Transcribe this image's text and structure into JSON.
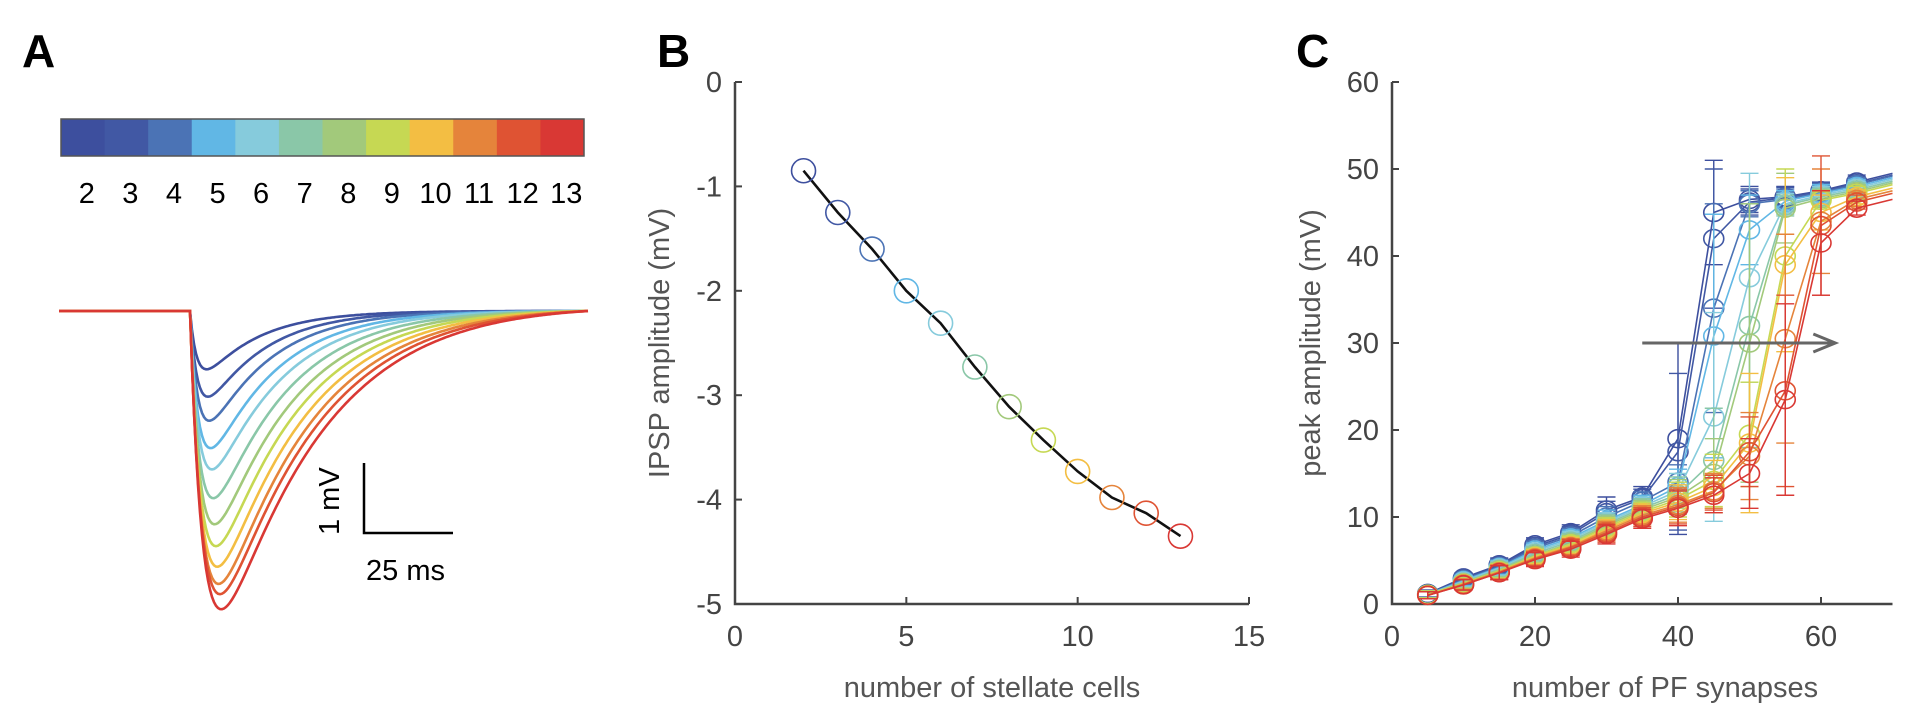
{
  "figure": {
    "panel_labels": [
      "A",
      "B",
      "C"
    ]
  },
  "chart_data": [
    {
      "panel": "A",
      "type": "line",
      "title": "",
      "description": "Simulated IPSP traces for different numbers of stellate cells",
      "colorbar": {
        "labels": [
          "2",
          "3",
          "4",
          "5",
          "6",
          "7",
          "8",
          "9",
          "10",
          "11",
          "12",
          "13"
        ],
        "colors": [
          "#3d4f9e",
          "#4158a4",
          "#4b73b5",
          "#61b7e5",
          "#86cbdc",
          "#8ac7a8",
          "#a2c97b",
          "#c6d853",
          "#f3be43",
          "#e5843b",
          "#df5333",
          "#d93834"
        ]
      },
      "series": [
        {
          "name": "2",
          "peak_mV": -0.85
        },
        {
          "name": "3",
          "peak_mV": -1.25
        },
        {
          "name": "4",
          "peak_mV": -1.6
        },
        {
          "name": "5",
          "peak_mV": -2.0
        },
        {
          "name": "6",
          "peak_mV": -2.31
        },
        {
          "name": "7",
          "peak_mV": -2.73
        },
        {
          "name": "8",
          "peak_mV": -3.11
        },
        {
          "name": "9",
          "peak_mV": -3.43
        },
        {
          "name": "10",
          "peak_mV": -3.73
        },
        {
          "name": "11",
          "peak_mV": -3.98
        },
        {
          "name": "12",
          "peak_mV": -4.13
        },
        {
          "name": "13",
          "peak_mV": -4.35
        }
      ],
      "scalebar": {
        "vertical_label": "1 mV",
        "horizontal_label": "25 ms",
        "vertical_mV": 1,
        "horizontal_ms": 25
      }
    },
    {
      "panel": "B",
      "type": "line",
      "title": "",
      "xlabel": "number of stellate cells",
      "ylabel": "IPSP amplitude (mV)",
      "xlim": [
        0,
        15
      ],
      "ylim": [
        -5,
        0
      ],
      "xticks": [
        0,
        5,
        10,
        15
      ],
      "yticks": [
        0,
        -1,
        -2,
        -3,
        -4,
        -5
      ],
      "x": [
        2,
        3,
        4,
        5,
        6,
        7,
        8,
        9,
        10,
        11,
        12,
        13
      ],
      "values": [
        -0.85,
        -1.25,
        -1.6,
        -2.0,
        -2.31,
        -2.73,
        -3.11,
        -3.43,
        -3.73,
        -3.98,
        -4.13,
        -4.35
      ],
      "marker_colors": [
        "#3d4f9e",
        "#4158a4",
        "#4b73b5",
        "#61b7e5",
        "#86cbdc",
        "#8ac7a8",
        "#a2c97b",
        "#c6d853",
        "#f3be43",
        "#e5843b",
        "#df5333",
        "#d93834"
      ],
      "line_color": "#111111",
      "grid": false
    },
    {
      "panel": "C",
      "type": "line",
      "title": "",
      "xlabel": "number of PF synapses",
      "ylabel": "peak amplitude (mV)",
      "xlim": [
        0,
        70
      ],
      "ylim": [
        0,
        60
      ],
      "xticks": [
        0,
        20,
        40,
        60
      ],
      "yticks": [
        0,
        10,
        20,
        30,
        40,
        50,
        60
      ],
      "x": [
        5,
        10,
        15,
        20,
        25,
        30,
        35,
        40,
        45,
        50,
        55,
        60,
        65
      ],
      "series": [
        {
          "name": "2",
          "color": "#3d4f9e",
          "values": [
            1.2,
            3.0,
            4.5,
            6.8,
            8.2,
            10.8,
            12.3,
            19.0,
            45.0,
            46.5,
            46.8,
            47.5,
            48.5
          ],
          "err": [
            0.4,
            0.6,
            0.8,
            0.8,
            0.9,
            1.5,
            1.2,
            11,
            6,
            1.5,
            1.2,
            1.0,
            0.8
          ]
        },
        {
          "name": "3",
          "color": "#4158a4",
          "values": [
            1.2,
            2.9,
            4.4,
            6.6,
            8.0,
            10.5,
            12.1,
            17.5,
            42.0,
            46.2,
            46.7,
            47.4,
            48.3
          ],
          "err": [
            0.4,
            0.6,
            0.8,
            0.8,
            0.9,
            1.3,
            1.1,
            9,
            8,
            1.5,
            1.2,
            1.0,
            0.8
          ]
        },
        {
          "name": "4",
          "color": "#4b73b5",
          "values": [
            1.1,
            2.8,
            4.3,
            6.4,
            7.8,
            10.0,
            11.8,
            14.0,
            34.0,
            46.0,
            46.5,
            47.3,
            48.2
          ],
          "err": [
            0.4,
            0.6,
            0.8,
            0.8,
            0.9,
            1.2,
            1.1,
            2,
            12,
            1.5,
            1.2,
            1.0,
            0.8
          ]
        },
        {
          "name": "5",
          "color": "#61b7e5",
          "values": [
            1.1,
            2.7,
            4.2,
            6.2,
            7.6,
            9.6,
            11.4,
            13.5,
            30.8,
            43.0,
            46.3,
            47.2,
            48.0
          ],
          "err": [
            0.4,
            0.6,
            0.8,
            0.8,
            0.9,
            1.2,
            1.1,
            2,
            14,
            4,
            1.2,
            1.0,
            0.8
          ]
        },
        {
          "name": "6",
          "color": "#86cbdc",
          "values": [
            1.1,
            2.6,
            4.1,
            6.0,
            7.4,
            9.4,
            11.2,
            13.0,
            21.5,
            37.5,
            46.0,
            47.0,
            47.8
          ],
          "err": [
            0.4,
            0.6,
            0.8,
            0.8,
            0.9,
            1.1,
            1.1,
            2,
            12,
            12,
            1.2,
            1.0,
            0.8
          ]
        },
        {
          "name": "7",
          "color": "#8ac7a8",
          "values": [
            1.1,
            2.5,
            4.0,
            5.8,
            7.2,
            9.2,
            11.0,
            12.6,
            16.5,
            32.0,
            45.8,
            46.8,
            47.6
          ],
          "err": [
            0.4,
            0.6,
            0.8,
            0.8,
            0.9,
            1.1,
            1.1,
            2,
            6,
            14,
            1.2,
            1.0,
            0.8
          ]
        },
        {
          "name": "8",
          "color": "#a2c97b",
          "values": [
            1.1,
            2.4,
            3.9,
            5.6,
            7.0,
            9.0,
            10.8,
            12.3,
            15.0,
            30.0,
            45.5,
            46.6,
            47.4
          ],
          "err": [
            0.4,
            0.6,
            0.8,
            0.8,
            0.9,
            1.1,
            1.1,
            2,
            4,
            16,
            4,
            1.0,
            0.8
          ]
        },
        {
          "name": "9",
          "color": "#c6d853",
          "values": [
            1.1,
            2.4,
            3.8,
            5.5,
            6.9,
            8.8,
            10.6,
            12.0,
            14.2,
            19.5,
            40.0,
            46.4,
            47.2
          ],
          "err": [
            0.4,
            0.6,
            0.8,
            0.8,
            0.9,
            1.1,
            1.1,
            2,
            3,
            6,
            10,
            1.0,
            0.8
          ]
        },
        {
          "name": "10",
          "color": "#f3be43",
          "values": [
            1.0,
            2.3,
            3.7,
            5.4,
            6.7,
            8.6,
            10.4,
            11.7,
            13.5,
            18.5,
            39.0,
            45.0,
            46.8
          ],
          "err": [
            0.4,
            0.6,
            0.8,
            0.8,
            0.9,
            1.1,
            1.1,
            2,
            3,
            8,
            10,
            2,
            0.8
          ]
        },
        {
          "name": "11",
          "color": "#e5843b",
          "values": [
            1.0,
            2.3,
            3.7,
            5.3,
            6.6,
            8.4,
            10.2,
            11.4,
            13.0,
            17.0,
            30.5,
            44.0,
            46.5
          ],
          "err": [
            0.4,
            0.6,
            0.8,
            0.8,
            0.9,
            1.1,
            1.1,
            2,
            2,
            5,
            12,
            6,
            0.8
          ]
        },
        {
          "name": "12",
          "color": "#df5333",
          "values": [
            1.0,
            2.2,
            3.6,
            5.2,
            6.5,
            8.2,
            10.0,
            11.2,
            12.8,
            17.5,
            24.5,
            43.5,
            46.2
          ],
          "err": [
            0.4,
            0.6,
            0.8,
            0.8,
            0.9,
            1.1,
            1.1,
            2,
            2,
            4,
            11,
            8,
            0.8
          ]
        },
        {
          "name": "13",
          "color": "#d93834",
          "values": [
            1.0,
            2.2,
            3.6,
            5.1,
            6.3,
            8.0,
            9.8,
            11.0,
            12.5,
            15.0,
            23.5,
            41.5,
            45.5
          ],
          "err": [
            0.4,
            0.6,
            0.8,
            0.8,
            0.9,
            1.1,
            1.1,
            2,
            2,
            4,
            11,
            6,
            0.8
          ]
        }
      ],
      "annotation": {
        "type": "arrow",
        "direction": "right",
        "y": 30,
        "x_from": 35,
        "x_to": 62,
        "color": "#666666"
      },
      "grid": false
    }
  ]
}
